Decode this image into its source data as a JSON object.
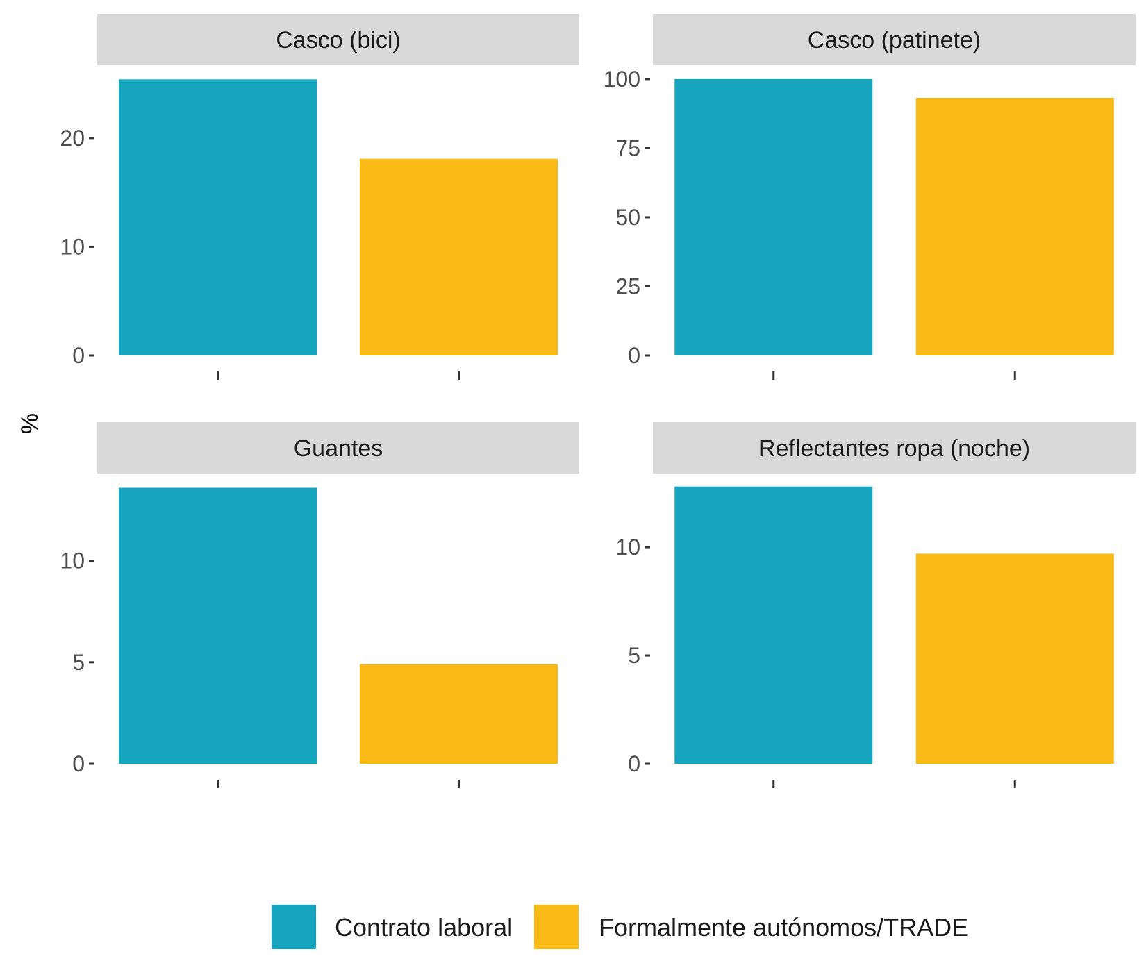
{
  "chart_data": {
    "type": "bar",
    "ylabel": "%",
    "xlabel": "",
    "legend_position": "bottom",
    "grid": false,
    "series": [
      {
        "name": "Contrato laboral",
        "color": "#17a5be"
      },
      {
        "name": "Formalmente autónomos/TRADE",
        "color": "#f9b916"
      }
    ],
    "panels": [
      {
        "title": "Casco (bici)",
        "values": [
          25.4,
          18.1
        ],
        "ylim": [
          0,
          26.7
        ],
        "yticks": [
          0,
          10,
          20
        ]
      },
      {
        "title": "Casco (patinete)",
        "values": [
          100,
          93.2
        ],
        "ylim": [
          0,
          105
        ],
        "yticks": [
          0,
          25,
          50,
          75,
          100
        ]
      },
      {
        "title": "Guantes",
        "values": [
          13.6,
          4.9
        ],
        "ylim": [
          0,
          14.3
        ],
        "yticks": [
          0,
          5,
          10
        ]
      },
      {
        "title": "Reflectantes ropa (noche)",
        "values": [
          12.8,
          9.7
        ],
        "ylim": [
          0,
          13.4
        ],
        "yticks": [
          0,
          5,
          10
        ]
      }
    ]
  }
}
